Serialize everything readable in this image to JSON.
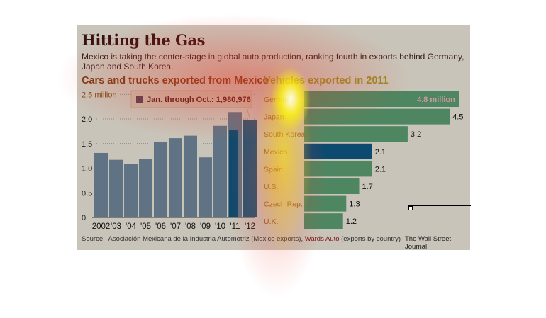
{
  "title": "Hitting the Gas",
  "subtitle": "Mexico is taking the center-stage in global auto production, ranking fourth in exports behind Germany, Japan and South Korea.",
  "source_label": "Source:",
  "source_a": "Asociación Mexicana de la Industria Automotriz (Mexico exports),",
  "source_b": "Wards Auto",
  "source_c": "(exports by country)",
  "credit": "The Wall Street Journal",
  "colors": {
    "bar_left": "#5f7384",
    "highlight": "#0c4a6e",
    "bar_right": "#4e8661",
    "mexico": "#0d4a70"
  },
  "chart_data": [
    {
      "type": "bar",
      "title": "Cars and trucks exported from Mexico",
      "categories": [
        "2002",
        "'03",
        "'04",
        "'05",
        "'06",
        "'07",
        "'08",
        "'09",
        "'10",
        "'11",
        "'12"
      ],
      "values": [
        1.31,
        1.17,
        1.09,
        1.18,
        1.53,
        1.61,
        1.66,
        1.22,
        1.86,
        2.14,
        1.98
      ],
      "partial_series": {
        "name": "Jan. through Oct.",
        "category": "'11",
        "value": 1.77
      },
      "annotation": "Jan. through Oct.: 1,980,976",
      "ylim": [
        0,
        2.5
      ],
      "yticks": [
        "0",
        "0.5",
        "1.0",
        "1.5",
        "2.0",
        "2.5 million"
      ],
      "grid": true
    },
    {
      "type": "bar",
      "orientation": "horizontal",
      "title": "Vehicles exported in 2011",
      "categories": [
        "Germany",
        "Japan",
        "South Korea",
        "Mexico",
        "Spain",
        "U.S.",
        "Czech Rep.",
        "U.K."
      ],
      "values": [
        4.8,
        4.5,
        3.2,
        2.1,
        2.1,
        1.7,
        1.3,
        1.2
      ],
      "labels": [
        "4.8 million",
        "4.5",
        "3.2",
        "2.1",
        "2.1",
        "1.7",
        "1.3",
        "1.2"
      ],
      "highlight": "Mexico"
    }
  ]
}
